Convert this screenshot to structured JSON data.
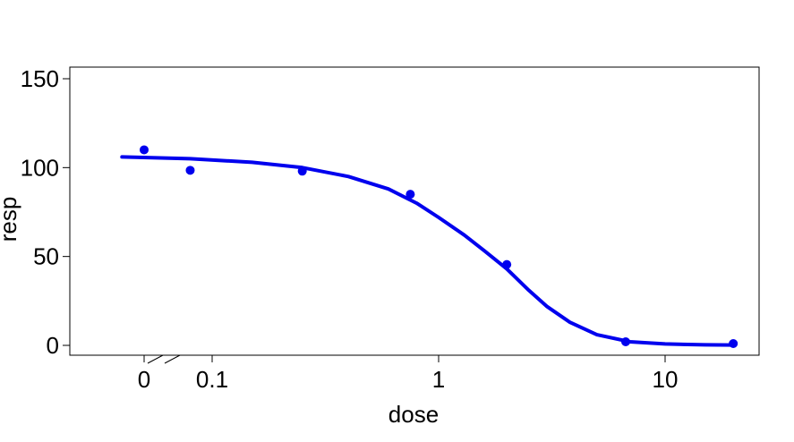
{
  "chart_data": {
    "type": "scatter",
    "xlabel": "dose",
    "ylabel": "resp",
    "x_scale": "log",
    "x_ticks": [
      {
        "label": "0",
        "value": 0
      },
      {
        "label": "0.1",
        "value": 0.1
      },
      {
        "label": "1",
        "value": 1
      },
      {
        "label": "10",
        "value": 10
      }
    ],
    "y_ticks": [
      0,
      50,
      100,
      150
    ],
    "xlim": [
      0.01,
      25
    ],
    "ylim": [
      -5,
      157
    ],
    "axis_break": "between 0 and 0.1",
    "grid": false,
    "legend": "none",
    "color": "#0000ee",
    "points": [
      {
        "x": 0,
        "y": 110
      },
      {
        "x": 0.08,
        "y": 98.5
      },
      {
        "x": 0.25,
        "y": 98
      },
      {
        "x": 0.75,
        "y": 85
      },
      {
        "x": 2,
        "y": 45.5
      },
      {
        "x": 6.7,
        "y": 2
      },
      {
        "x": 20,
        "y": 1
      }
    ],
    "fitted_curve": [
      {
        "x": 0.04,
        "y": 106
      },
      {
        "x": 0.08,
        "y": 105
      },
      {
        "x": 0.15,
        "y": 103
      },
      {
        "x": 0.25,
        "y": 100
      },
      {
        "x": 0.4,
        "y": 95
      },
      {
        "x": 0.6,
        "y": 88
      },
      {
        "x": 0.8,
        "y": 80
      },
      {
        "x": 1.0,
        "y": 72
      },
      {
        "x": 1.3,
        "y": 62
      },
      {
        "x": 1.6,
        "y": 53
      },
      {
        "x": 2.0,
        "y": 43
      },
      {
        "x": 2.5,
        "y": 31
      },
      {
        "x": 3.0,
        "y": 22
      },
      {
        "x": 3.8,
        "y": 13
      },
      {
        "x": 5.0,
        "y": 6
      },
      {
        "x": 7.0,
        "y": 2
      },
      {
        "x": 10,
        "y": 0.8
      },
      {
        "x": 15,
        "y": 0.3
      },
      {
        "x": 20,
        "y": 0.2
      }
    ]
  }
}
